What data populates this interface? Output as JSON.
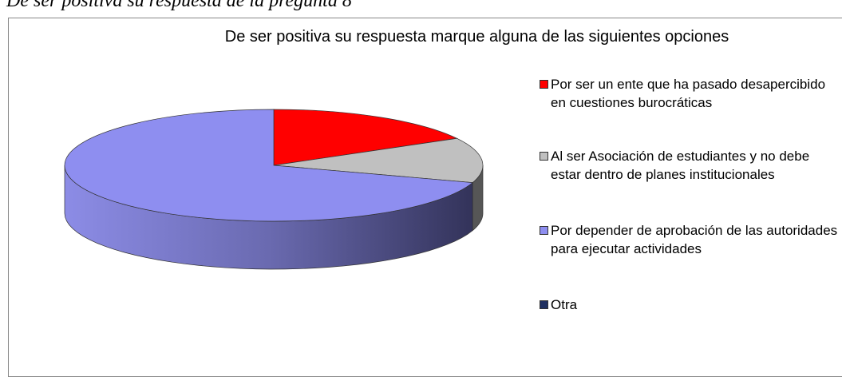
{
  "caption": "De ser positiva su respuesta de la pregunta 8",
  "chart_data": {
    "type": "pie",
    "title": "De ser positiva su respuesta marque alguna de las siguientes opciones",
    "categories": [
      "Por ser un ente que ha pasado desapercibido en cuestiones burocráticas",
      "Al ser Asociación de estudiantes y no debe estar dentro de planes institucionales",
      "Por depender de aprobación de las autoridades para ejecutar actividades",
      "Otra"
    ],
    "values": [
      17,
      13,
      70,
      0
    ],
    "colors": [
      "#ff0000",
      "#c0c0c0",
      "#8e8ef0",
      "#1f2f60"
    ]
  }
}
